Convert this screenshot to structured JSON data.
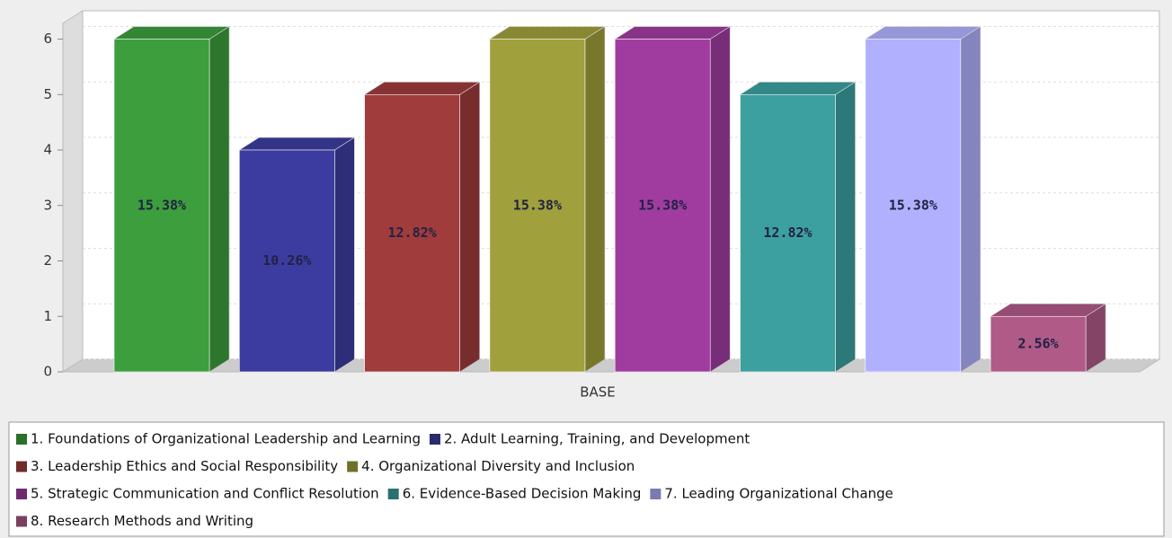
{
  "chart_data": {
    "type": "bar",
    "categories": [
      "BASE"
    ],
    "ylim": [
      0,
      6.3
    ],
    "yticks": [
      0,
      1,
      2,
      3,
      4,
      5,
      6
    ],
    "grid": true,
    "series": [
      {
        "name": "1. Foundations of Organizational Leadership and Learning",
        "color": "#3c9e3c",
        "values": [
          6
        ],
        "value_labels": [
          "15.38%"
        ]
      },
      {
        "name": "2. Adult Learning, Training, and Development",
        "color": "#3c3ca0",
        "values": [
          4
        ],
        "value_labels": [
          "10.26%"
        ]
      },
      {
        "name": "3. Leadership Ethics and Social Responsibility",
        "color": "#a03c3c",
        "values": [
          5
        ],
        "value_labels": [
          "12.82%"
        ]
      },
      {
        "name": "4. Organizational Diversity and Inclusion",
        "color": "#a0a03c",
        "values": [
          6
        ],
        "value_labels": [
          "15.38%"
        ]
      },
      {
        "name": "5. Strategic Communication and Conflict Resolution",
        "color": "#a03ca0",
        "values": [
          6
        ],
        "value_labels": [
          "15.38%"
        ]
      },
      {
        "name": "6. Evidence-Based Decision Making",
        "color": "#3ca0a0",
        "values": [
          5
        ],
        "value_labels": [
          "12.82%"
        ]
      },
      {
        "name": "7. Leading Organizational Change",
        "color": "#b0b0ff",
        "values": [
          6
        ],
        "value_labels": [
          "15.38%"
        ]
      },
      {
        "name": "8. Research Methods and Writing",
        "color": "#b05a88",
        "values": [
          1
        ],
        "value_labels": [
          "2.56%"
        ]
      }
    ]
  }
}
